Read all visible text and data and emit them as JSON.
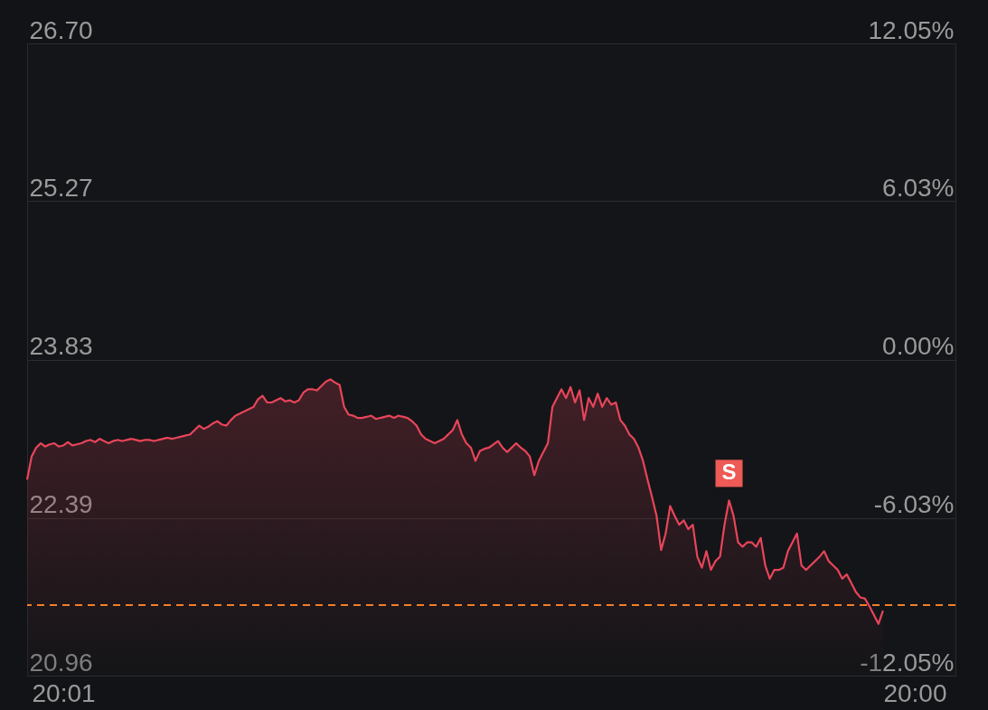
{
  "chart_data": {
    "type": "area",
    "categories": [
      null,
      null,
      null,
      null,
      null,
      null,
      null,
      null,
      "20:01",
      null,
      null,
      null,
      null,
      null,
      null,
      null,
      null,
      null,
      null,
      null,
      null,
      null,
      null,
      null,
      null,
      null,
      null,
      null,
      null,
      null,
      null,
      null,
      null,
      null,
      null,
      null,
      null,
      null,
      null,
      null,
      null,
      null,
      null,
      null,
      null,
      null,
      null,
      null,
      null,
      null,
      null,
      null,
      null,
      null,
      null,
      null,
      null,
      null,
      null,
      null,
      null,
      null,
      null,
      null,
      null,
      null,
      null,
      null,
      null,
      null,
      null,
      null,
      null,
      null,
      null,
      null,
      null,
      null,
      null,
      null,
      null,
      null,
      null,
      null,
      null,
      null,
      null,
      null,
      null,
      null,
      null,
      null,
      null,
      null,
      null,
      null,
      null,
      null,
      null,
      null,
      null,
      null,
      null,
      null,
      null,
      null,
      null,
      null,
      null,
      null,
      null,
      null,
      null,
      null,
      null,
      null,
      null,
      null,
      null,
      null,
      null,
      null,
      null,
      null,
      null,
      null,
      null,
      null,
      null,
      null,
      null,
      null,
      null,
      null,
      null,
      null,
      null,
      null,
      null,
      null,
      null,
      null,
      null,
      null,
      null,
      null,
      null,
      null,
      null,
      null,
      null,
      null,
      null,
      null,
      null,
      null,
      null,
      null,
      null,
      null,
      null,
      null,
      null,
      null,
      null,
      null,
      null,
      null,
      null,
      null,
      null,
      null,
      null,
      null,
      null,
      null,
      null,
      null,
      null,
      null,
      null,
      null,
      null,
      null,
      null,
      null,
      null,
      null,
      null,
      null,
      null,
      null,
      null,
      null,
      null,
      null,
      "20:00",
      null,
      null,
      null,
      null,
      null,
      null,
      null,
      null,
      null
    ],
    "ylim": [
      20.96,
      26.7
    ],
    "yticks": [
      20.96,
      22.39,
      23.83,
      25.27,
      {
        "value": 26.7,
        "label": "26.70"
      }
    ],
    "y2lim": [
      -12.05,
      12.05
    ],
    "y2ticks": [
      {
        "value": -12.05,
        "label": "-12.05%"
      },
      {
        "value": -6.03,
        "label": "-6.03%"
      },
      {
        "value": 0,
        "label": "0.00%"
      },
      {
        "value": 6.03,
        "label": "6.03%"
      },
      {
        "value": 12.05,
        "label": "12.05%"
      }
    ],
    "grid": "y",
    "legend": false,
    "marker": "none",
    "line_style": "solid",
    "series": [
      {
        "color": "#e8455a",
        "values": [
          22.74,
          22.95,
          23.03,
          23.07,
          23.04,
          23.06,
          23.07,
          23.04,
          23.05,
          23.08,
          23.05,
          23.06,
          23.07,
          23.09,
          23.1,
          23.08,
          23.11,
          23.09,
          23.07,
          23.09,
          23.1,
          23.09,
          23.1,
          23.11,
          23.1,
          23.09,
          23.1,
          23.1,
          23.09,
          23.1,
          23.11,
          23.12,
          23.11,
          23.12,
          23.13,
          23.14,
          23.15,
          23.19,
          23.23,
          23.2,
          23.22,
          23.25,
          23.27,
          23.24,
          23.23,
          23.28,
          23.32,
          23.34,
          23.36,
          23.38,
          23.4,
          23.47,
          23.5,
          23.44,
          23.44,
          23.46,
          23.48,
          23.45,
          23.46,
          23.44,
          23.46,
          23.53,
          23.56,
          23.56,
          23.55,
          23.59,
          23.63,
          23.65,
          23.62,
          23.6,
          23.4,
          23.33,
          23.32,
          23.3,
          23.3,
          23.31,
          23.32,
          23.29,
          23.3,
          23.31,
          23.32,
          23.3,
          23.32,
          23.31,
          23.3,
          23.27,
          23.23,
          23.15,
          23.11,
          23.09,
          23.07,
          23.09,
          23.11,
          23.15,
          23.19,
          23.28,
          23.15,
          23.07,
          23.03,
          22.91,
          23.0,
          23.02,
          23.03,
          23.06,
          23.09,
          23.03,
          22.99,
          23.03,
          23.07,
          23.03,
          23.0,
          22.95,
          22.78,
          22.91,
          22.99,
          23.07,
          23.4,
          23.48,
          23.56,
          23.48,
          23.58,
          23.44,
          23.55,
          23.28,
          23.48,
          23.4,
          23.52,
          23.4,
          23.48,
          23.42,
          23.44,
          23.28,
          23.23,
          23.15,
          23.11,
          23.03,
          22.91,
          22.74,
          22.58,
          22.41,
          22.1,
          22.25,
          22.5,
          22.41,
          22.33,
          22.37,
          22.29,
          22.33,
          22.04,
          21.94,
          22.09,
          21.92,
          22.0,
          22.04,
          22.33,
          22.55,
          22.41,
          22.17,
          22.13,
          22.17,
          22.17,
          22.13,
          22.21,
          21.96,
          21.84,
          21.92,
          21.92,
          21.94,
          22.09,
          22.17,
          22.25,
          21.96,
          21.92,
          21.96,
          22.0,
          22.04,
          22.09,
          22.0,
          21.96,
          21.92,
          21.84,
          21.88,
          21.8,
          21.72,
          21.67,
          21.66,
          21.59,
          21.51,
          21.43,
          21.55,
          null,
          null,
          null,
          null,
          null,
          null,
          null,
          null,
          null,
          null,
          null,
          null,
          null,
          null,
          null,
          null
        ]
      }
    ],
    "ref_lines": [
      {
        "axis": "y",
        "value": 21.6,
        "line_style": "dashed",
        "color": "#f07f2a"
      }
    ],
    "annotations": [
      {
        "text": "S",
        "y": 22.55
      }
    ]
  }
}
